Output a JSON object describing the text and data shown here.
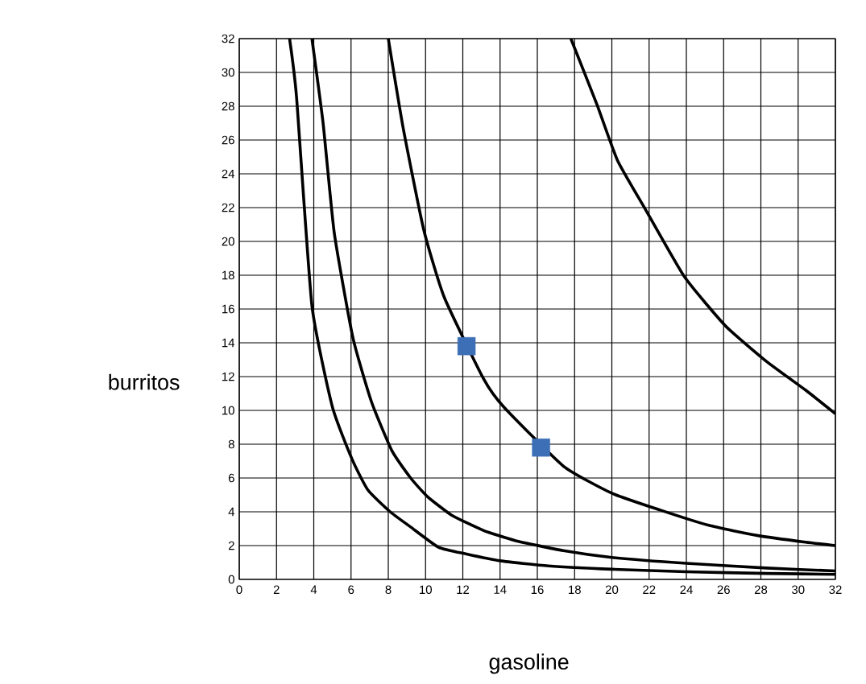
{
  "chart_data": {
    "type": "line",
    "xlabel": "gasoline",
    "ylabel": "burritos",
    "xlim": [
      0,
      32
    ],
    "ylim": [
      0,
      32
    ],
    "xticks": [
      0,
      2,
      4,
      6,
      8,
      10,
      12,
      14,
      16,
      18,
      20,
      22,
      24,
      26,
      28,
      30,
      32
    ],
    "yticks": [
      0,
      2,
      4,
      6,
      8,
      10,
      12,
      14,
      16,
      18,
      20,
      22,
      24,
      26,
      28,
      30,
      32
    ],
    "grid": true,
    "series": [
      {
        "color": "#000000",
        "x": [
          2.7,
          3.07,
          3.9,
          5.0,
          6.06,
          6.9,
          8.1,
          9.2,
          10.7,
          12.2,
          14,
          16.6,
          20,
          24,
          28.3,
          32
        ],
        "values": [
          32,
          28.6,
          16.2,
          10.2,
          7.1,
          5.3,
          4.0,
          3.1,
          1.9,
          1.5,
          1.1,
          0.8,
          0.6,
          0.45,
          0.35,
          0.3
        ]
      },
      {
        "color": "#000000",
        "x": [
          3.9,
          4.5,
          5.1,
          6.1,
          7.1,
          8.2,
          9.2,
          10.1,
          11.4,
          13.1,
          14.8,
          17.4,
          20,
          24,
          28.3,
          32
        ],
        "values": [
          32,
          27,
          20.5,
          14.3,
          10.5,
          7.6,
          6.0,
          4.9,
          3.8,
          2.9,
          2.3,
          1.7,
          1.3,
          0.95,
          0.67,
          0.5
        ]
      },
      {
        "color": "#000000",
        "x": [
          8,
          8.8,
          9.9,
          11,
          13.1,
          14.2,
          17.4,
          20,
          22.6,
          25.2,
          27.8,
          30.4,
          32
        ],
        "values": [
          32,
          26.7,
          20.7,
          16.7,
          11.9,
          10.2,
          6.7,
          5.1,
          4.1,
          3.2,
          2.6,
          2.2,
          2.0
        ]
      },
      {
        "color": "#000000",
        "x": [
          17.8,
          19.2,
          20.3,
          21.8,
          23.9,
          26.1,
          28.3,
          30.4,
          32
        ],
        "values": [
          32,
          28.1,
          24.8,
          21.9,
          17.9,
          15,
          12.9,
          11.2,
          9.8
        ]
      },
      {
        "type": "scatter",
        "color": "#3d6fb6",
        "marker": "square",
        "x": [
          12.2,
          16.2
        ],
        "values": [
          13.8,
          7.8
        ]
      }
    ]
  }
}
